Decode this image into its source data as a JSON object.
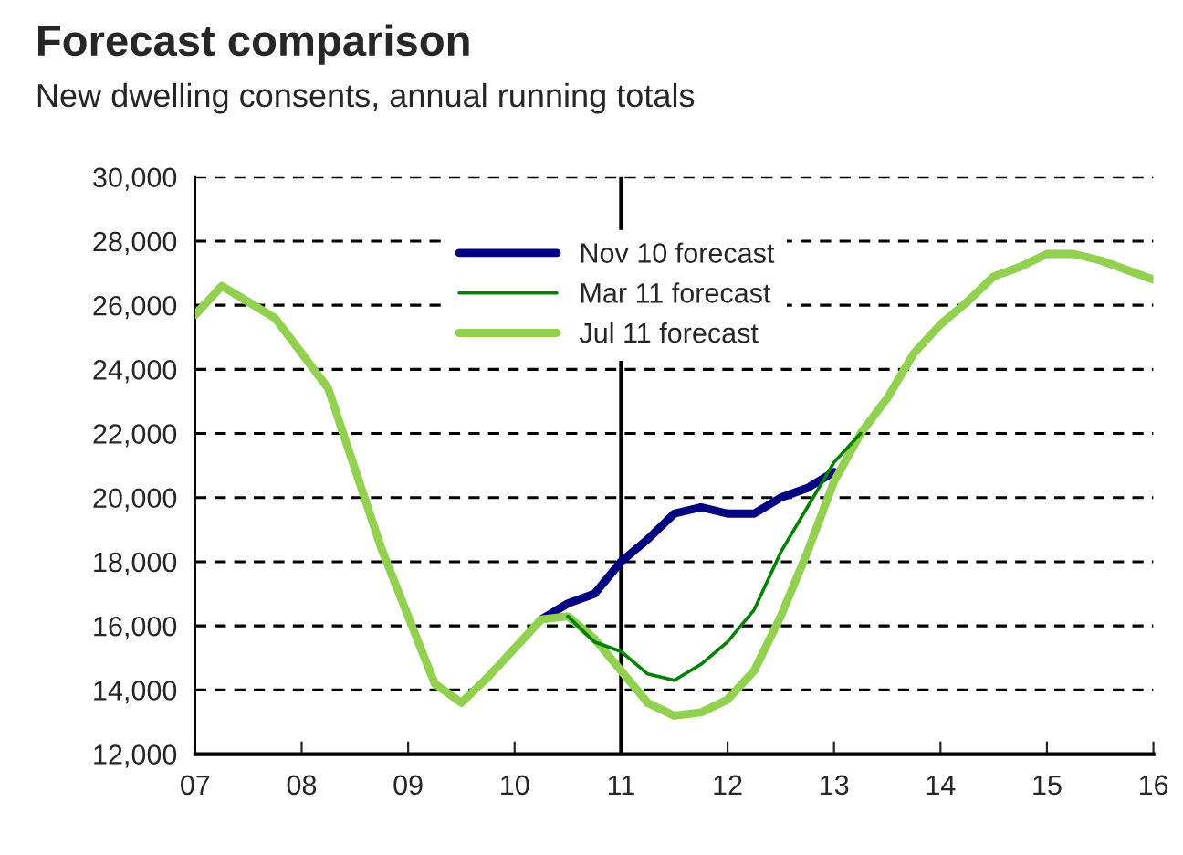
{
  "chart_data": {
    "type": "line",
    "title": "Forecast comparison",
    "subtitle": "New dwelling consents, annual running totals",
    "series": [
      {
        "name": "Nov 10 forecast",
        "color": "#000080",
        "x": [
          2010.25,
          2010.5,
          2010.75,
          2011,
          2011.25,
          2011.5,
          2011.75,
          2012,
          2012.25,
          2012.5,
          2012.75,
          2013
        ],
        "values": [
          16200,
          16700,
          17000,
          18000,
          18700,
          19500,
          19700,
          19500,
          19500,
          20000,
          20300,
          20800
        ]
      },
      {
        "name": "Mar 11 forecast",
        "color": "#008000",
        "x": [
          2010.5,
          2010.75,
          2011,
          2011.25,
          2011.5,
          2011.75,
          2012,
          2012.25,
          2012.5,
          2012.75,
          2013,
          2013.25
        ],
        "values": [
          16300,
          15500,
          15200,
          14500,
          14300,
          14800,
          15500,
          16500,
          18300,
          19700,
          21100,
          22000
        ]
      },
      {
        "name": "Jul 11 forecast",
        "color": "#92d050",
        "x": [
          2007,
          2007.25,
          2007.5,
          2007.75,
          2008,
          2008.25,
          2008.5,
          2008.75,
          2009,
          2009.25,
          2009.5,
          2009.75,
          2010,
          2010.25,
          2010.5,
          2010.75,
          2011,
          2011.25,
          2011.5,
          2011.75,
          2012,
          2012.25,
          2012.5,
          2012.75,
          2013,
          2013.25,
          2013.5,
          2013.75,
          2014,
          2014.25,
          2014.5,
          2014.75,
          2015,
          2015.25,
          2015.5,
          2015.75,
          2016
        ],
        "values": [
          25700,
          26600,
          26100,
          25600,
          24500,
          23400,
          20900,
          18400,
          16300,
          14200,
          13600,
          14400,
          15300,
          16200,
          16300,
          15600,
          14600,
          13600,
          13200,
          13300,
          13700,
          14600,
          16300,
          18300,
          20500,
          22000,
          23100,
          24500,
          25400,
          26100,
          26900,
          27200,
          27600,
          27600,
          27400,
          27100,
          26800
        ]
      }
    ],
    "xlim": [
      2007,
      2016
    ],
    "xticks": [
      {
        "value": 2007,
        "label": "07"
      },
      {
        "value": 2008,
        "label": "08"
      },
      {
        "value": 2009,
        "label": "09"
      },
      {
        "value": 2010,
        "label": "10"
      },
      {
        "value": 2011,
        "label": "11"
      },
      {
        "value": 2012,
        "label": "12"
      },
      {
        "value": 2013,
        "label": "13"
      },
      {
        "value": 2014,
        "label": "14"
      },
      {
        "value": 2015,
        "label": "15"
      },
      {
        "value": 2016,
        "label": "16"
      }
    ],
    "ylim": [
      12000,
      30000
    ],
    "yticks": [
      {
        "value": 12000,
        "label": "12,000"
      },
      {
        "value": 14000,
        "label": "14,000"
      },
      {
        "value": 16000,
        "label": "16,000"
      },
      {
        "value": 18000,
        "label": "18,000"
      },
      {
        "value": 20000,
        "label": "20,000"
      },
      {
        "value": 22000,
        "label": "22,000"
      },
      {
        "value": 24000,
        "label": "24,000"
      },
      {
        "value": 26000,
        "label": "26,000"
      },
      {
        "value": 28000,
        "label": "28,000"
      },
      {
        "value": 30000,
        "label": "30,000"
      }
    ],
    "ref_lines": [
      {
        "axis": "x",
        "value": 2011,
        "color": "#000000",
        "line_style": "solid"
      }
    ],
    "grid": "y",
    "legend": "top",
    "line_style": "solid",
    "marker": "none"
  }
}
